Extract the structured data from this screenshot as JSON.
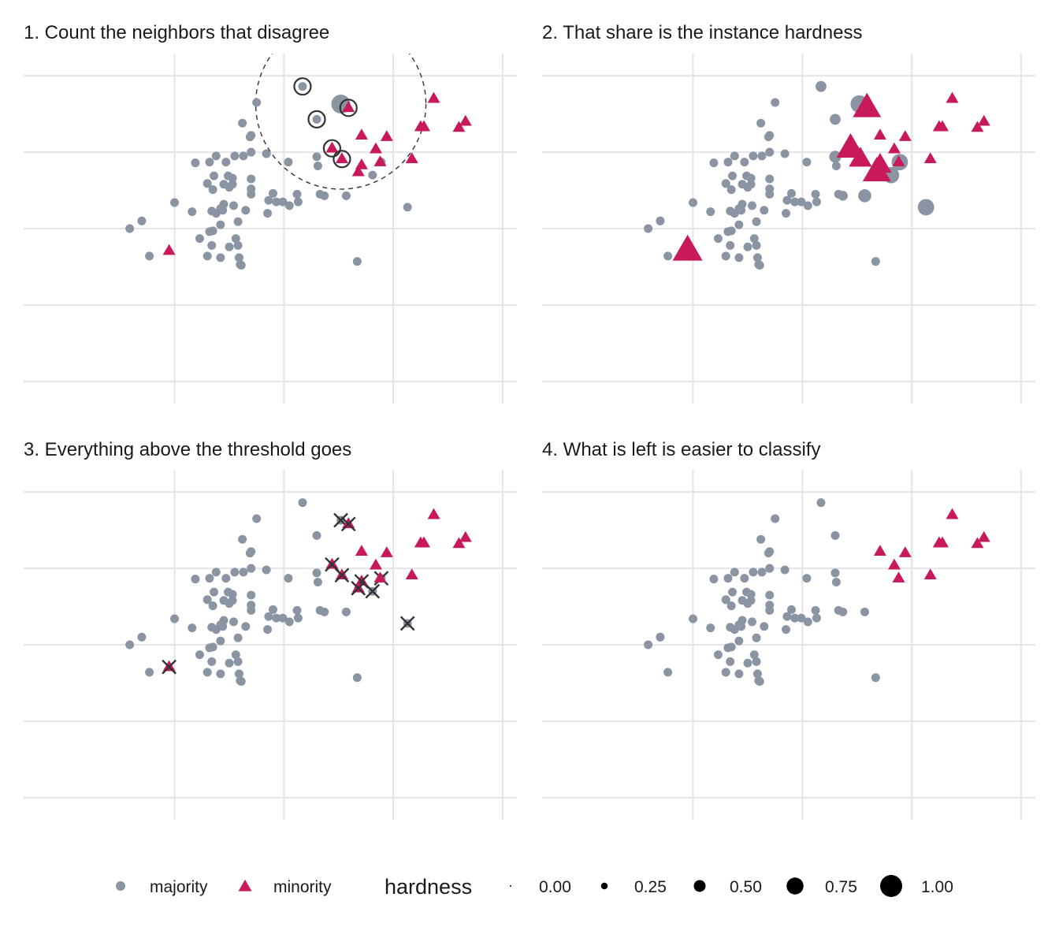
{
  "colors": {
    "majority": "#8a94a3",
    "minority": "#c8195a",
    "grid": "#e6e6e6",
    "marker": "#333333"
  },
  "chart_data": [
    {
      "type": "scatter",
      "title": "1. Count the neighbors that disagree",
      "mode": "neighbors",
      "grid": true,
      "xlim": [
        -2.38,
        2.13
      ],
      "ylim": [
        -2.29,
        2.29
      ]
    },
    {
      "type": "scatter",
      "title": "2. That share is the instance hardness",
      "mode": "hardness",
      "grid": true,
      "xlim": [
        -2.38,
        2.13
      ],
      "ylim": [
        -2.29,
        2.29
      ]
    },
    {
      "type": "scatter",
      "title": "3. Everything above the threshold goes",
      "mode": "removed",
      "grid": true,
      "xlim": [
        -2.38,
        2.13
      ],
      "ylim": [
        -2.29,
        2.29
      ]
    },
    {
      "type": "scatter",
      "title": "4. What is left is easier to classify",
      "mode": "remaining",
      "grid": true,
      "xlim": [
        -2.38,
        2.13
      ],
      "ylim": [
        -2.29,
        2.29
      ]
    }
  ],
  "points": [
    {
      "x": 0.17,
      "y": 1.86,
      "class": "majority",
      "hardness": 0.2
    },
    {
      "x": 0.52,
      "y": 1.63,
      "class": "majority",
      "hardness": 0.8
    },
    {
      "x": -0.25,
      "y": 1.65,
      "class": "majority",
      "hardness": 0
    },
    {
      "x": 0.3,
      "y": 1.43,
      "class": "majority",
      "hardness": 0.2
    },
    {
      "x": -0.38,
      "y": 1.38,
      "class": "majority",
      "hardness": 0
    },
    {
      "x": -0.3,
      "y": 1.22,
      "class": "majority",
      "hardness": 0
    },
    {
      "x": -0.31,
      "y": 1.2,
      "class": "majority",
      "hardness": 0
    },
    {
      "x": -0.3,
      "y": 1.0,
      "class": "majority",
      "hardness": 0
    },
    {
      "x": -0.16,
      "y": 0.98,
      "class": "majority",
      "hardness": 0
    },
    {
      "x": -0.62,
      "y": 0.95,
      "class": "majority",
      "hardness": 0
    },
    {
      "x": -0.45,
      "y": 0.95,
      "class": "majority",
      "hardness": 0
    },
    {
      "x": -0.37,
      "y": 0.95,
      "class": "majority",
      "hardness": 0
    },
    {
      "x": -0.68,
      "y": 0.87,
      "class": "majority",
      "hardness": 0
    },
    {
      "x": -0.53,
      "y": 0.87,
      "class": "majority",
      "hardness": 0
    },
    {
      "x": -0.81,
      "y": 0.86,
      "class": "majority",
      "hardness": 0
    },
    {
      "x": 0.3,
      "y": 0.94,
      "class": "majority",
      "hardness": 0.3
    },
    {
      "x": 0.04,
      "y": 0.87,
      "class": "majority",
      "hardness": 0
    },
    {
      "x": 0.31,
      "y": 0.82,
      "class": "majority",
      "hardness": 0
    },
    {
      "x": 0.89,
      "y": 0.87,
      "class": "majority",
      "hardness": 0.7
    },
    {
      "x": 0.81,
      "y": 0.7,
      "class": "majority",
      "hardness": 0.7
    },
    {
      "x": -0.64,
      "y": 0.69,
      "class": "majority",
      "hardness": 0
    },
    {
      "x": -0.51,
      "y": 0.69,
      "class": "majority",
      "hardness": 0
    },
    {
      "x": -0.47,
      "y": 0.66,
      "class": "majority",
      "hardness": 0
    },
    {
      "x": -0.3,
      "y": 0.65,
      "class": "majority",
      "hardness": 0
    },
    {
      "x": -0.7,
      "y": 0.59,
      "class": "majority",
      "hardness": 0
    },
    {
      "x": -0.55,
      "y": 0.58,
      "class": "majority",
      "hardness": 0
    },
    {
      "x": -0.47,
      "y": 0.58,
      "class": "majority",
      "hardness": 0
    },
    {
      "x": -0.5,
      "y": 0.54,
      "class": "majority",
      "hardness": 0
    },
    {
      "x": -0.65,
      "y": 0.51,
      "class": "majority",
      "hardness": 0
    },
    {
      "x": -0.3,
      "y": 0.52,
      "class": "majority",
      "hardness": 0
    },
    {
      "x": -0.3,
      "y": 0.45,
      "class": "majority",
      "hardness": 0
    },
    {
      "x": -0.1,
      "y": 0.46,
      "class": "majority",
      "hardness": 0
    },
    {
      "x": 0.12,
      "y": 0.45,
      "class": "majority",
      "hardness": 0
    },
    {
      "x": 0.37,
      "y": 0.43,
      "class": "majority",
      "hardness": 0.1
    },
    {
      "x": 0.57,
      "y": 0.43,
      "class": "majority",
      "hardness": 0.4
    },
    {
      "x": -0.14,
      "y": 0.37,
      "class": "majority",
      "hardness": 0
    },
    {
      "x": -0.07,
      "y": 0.35,
      "class": "majority",
      "hardness": 0
    },
    {
      "x": -0.01,
      "y": 0.35,
      "class": "majority",
      "hardness": 0
    },
    {
      "x": 0.13,
      "y": 0.35,
      "class": "majority",
      "hardness": 0
    },
    {
      "x": -1.0,
      "y": 0.34,
      "class": "majority",
      "hardness": 0
    },
    {
      "x": -0.46,
      "y": 0.3,
      "class": "majority",
      "hardness": 0
    },
    {
      "x": -0.58,
      "y": 0.26,
      "class": "majority",
      "hardness": 0
    },
    {
      "x": -0.56,
      "y": 0.24,
      "class": "majority",
      "hardness": 0
    },
    {
      "x": -0.66,
      "y": 0.23,
      "class": "majority",
      "hardness": 0
    },
    {
      "x": -0.35,
      "y": 0.24,
      "class": "majority",
      "hardness": 0
    },
    {
      "x": -0.84,
      "y": 0.22,
      "class": "majority",
      "hardness": 0
    },
    {
      "x": -0.62,
      "y": 0.2,
      "class": "majority",
      "hardness": 0
    },
    {
      "x": 1.13,
      "y": 0.28,
      "class": "majority",
      "hardness": 0.7
    },
    {
      "x": -0.15,
      "y": 0.2,
      "class": "majority",
      "hardness": 0
    },
    {
      "x": -0.42,
      "y": 0.09,
      "class": "majority",
      "hardness": 0
    },
    {
      "x": -1.3,
      "y": 0.1,
      "class": "majority",
      "hardness": 0
    },
    {
      "x": -0.58,
      "y": 0.05,
      "class": "majority",
      "hardness": 0
    },
    {
      "x": -0.68,
      "y": -0.04,
      "class": "majority",
      "hardness": 0
    },
    {
      "x": -0.65,
      "y": -0.03,
      "class": "majority",
      "hardness": 0
    },
    {
      "x": -0.44,
      "y": -0.13,
      "class": "majority",
      "hardness": 0
    },
    {
      "x": -0.77,
      "y": -0.13,
      "class": "majority",
      "hardness": 0
    },
    {
      "x": -0.66,
      "y": -0.22,
      "class": "majority",
      "hardness": 0
    },
    {
      "x": -0.5,
      "y": -0.24,
      "class": "majority",
      "hardness": 0
    },
    {
      "x": -0.42,
      "y": -0.22,
      "class": "majority",
      "hardness": 0
    },
    {
      "x": -0.7,
      "y": -0.36,
      "class": "majority",
      "hardness": 0
    },
    {
      "x": -0.58,
      "y": -0.38,
      "class": "majority",
      "hardness": 0
    },
    {
      "x": -0.41,
      "y": -0.38,
      "class": "majority",
      "hardness": 0
    },
    {
      "x": -1.23,
      "y": -0.36,
      "class": "majority",
      "hardness": 0
    },
    {
      "x": -0.4,
      "y": -0.47,
      "class": "majority",
      "hardness": 0
    },
    {
      "x": -0.39,
      "y": -0.48,
      "class": "majority",
      "hardness": 0
    },
    {
      "x": 0.67,
      "y": -0.43,
      "class": "majority",
      "hardness": 0
    },
    {
      "x": -1.41,
      "y": 0.0,
      "class": "majority",
      "hardness": 0
    },
    {
      "x": -0.55,
      "y": 0.32,
      "class": "majority",
      "hardness": 0
    },
    {
      "x": 0.05,
      "y": 0.3,
      "class": "majority",
      "hardness": 0
    },
    {
      "x": 0.33,
      "y": 0.45,
      "class": "majority",
      "hardness": 0
    },
    {
      "x": 1.37,
      "y": 1.7,
      "class": "minority",
      "hardness": 0
    },
    {
      "x": 1.66,
      "y": 1.4,
      "class": "minority",
      "hardness": 0
    },
    {
      "x": 0.59,
      "y": 1.58,
      "class": "minority",
      "hardness": 0.9
    },
    {
      "x": 0.84,
      "y": 1.04,
      "class": "minority",
      "hardness": 0
    },
    {
      "x": 0.94,
      "y": 1.2,
      "class": "minority",
      "hardness": 0
    },
    {
      "x": 1.25,
      "y": 1.33,
      "class": "minority",
      "hardness": 0
    },
    {
      "x": 1.28,
      "y": 1.33,
      "class": "minority",
      "hardness": 0
    },
    {
      "x": 1.6,
      "y": 1.32,
      "class": "minority",
      "hardness": 0
    },
    {
      "x": 0.71,
      "y": 1.22,
      "class": "minority",
      "hardness": 0
    },
    {
      "x": 0.88,
      "y": 0.87,
      "class": "minority",
      "hardness": 0
    },
    {
      "x": 0.44,
      "y": 1.05,
      "class": "minority",
      "hardness": 0.9
    },
    {
      "x": 0.53,
      "y": 0.91,
      "class": "minority",
      "hardness": 0.6
    },
    {
      "x": 0.71,
      "y": 0.83,
      "class": "minority",
      "hardness": 0.6
    },
    {
      "x": 1.17,
      "y": 0.91,
      "class": "minority",
      "hardness": 0
    },
    {
      "x": 0.68,
      "y": 0.74,
      "class": "minority",
      "hardness": 0.9
    },
    {
      "x": -1.05,
      "y": -0.29,
      "class": "minority",
      "hardness": 1.0
    }
  ],
  "neighborhood": {
    "center": [
      0.52,
      1.63
    ],
    "neighbors": [
      0,
      3,
      72,
      80,
      81
    ]
  },
  "legend": {
    "classes": [
      {
        "label": "majority",
        "class": "majority"
      },
      {
        "label": "minority",
        "class": "minority"
      }
    ],
    "hardness_title": "hardness",
    "hardness_levels": [
      {
        "label": "0.00",
        "value": 0
      },
      {
        "label": "0.25",
        "value": 0.25
      },
      {
        "label": "0.50",
        "value": 0.5
      },
      {
        "label": "0.75",
        "value": 0.75
      },
      {
        "label": "1.00",
        "value": 1
      }
    ]
  }
}
